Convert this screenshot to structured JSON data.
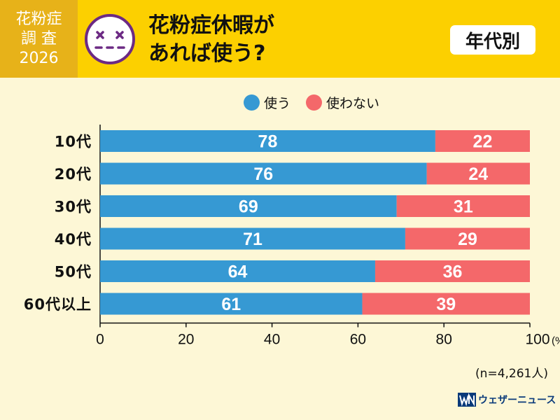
{
  "header": {
    "badge_lines": [
      "花粉症",
      "調 査",
      "2026"
    ],
    "title_lines": [
      "花粉症休暇が",
      "あれば使う?"
    ],
    "tag": "年代別"
  },
  "colors": {
    "header_bg": "#fcd000",
    "badge_bg": "#e7b219",
    "page_bg": "#fdf7d6",
    "use": "#3699d3",
    "not_use": "#f4686a",
    "face": "#6c2a84"
  },
  "icons": {
    "face": "dizzy-face-icon",
    "logo": "weathernews-logo-icon"
  },
  "legend": [
    {
      "label": "使う",
      "color": "#3699d3"
    },
    {
      "label": "使わない",
      "color": "#f4686a"
    }
  ],
  "chart_data": {
    "type": "bar",
    "orientation": "horizontal",
    "stacked": true,
    "categories": [
      "10代",
      "20代",
      "30代",
      "40代",
      "50代",
      "60代以上"
    ],
    "series": [
      {
        "name": "使う",
        "values": [
          78,
          76,
          69,
          71,
          64,
          61
        ]
      },
      {
        "name": "使わない",
        "values": [
          22,
          24,
          31,
          29,
          36,
          39
        ]
      }
    ],
    "xlim": [
      0,
      100
    ],
    "xticks": [
      0,
      20,
      40,
      60,
      80,
      100
    ],
    "xtick_labels": [
      "0",
      "20",
      "40",
      "60",
      "80",
      "100"
    ],
    "x_unit": "(%)",
    "legend_position": "top"
  },
  "sample_note": "(n=4,261人)",
  "logo": {
    "text": "ウェザーニュース"
  }
}
